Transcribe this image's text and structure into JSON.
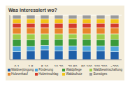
{
  "chart_data": {
    "type": "bar",
    "title": "Was interessiert wo?",
    "categories": [
      "0-1",
      "1-5",
      "5-10",
      "10-20",
      "20-50",
      "50-100",
      "100-200",
      ">200"
    ],
    "series": [
      {
        "name": "Waldverjüngung",
        "color": "#1f5fa8",
        "values": [
          18,
          20,
          22,
          20,
          21,
          19,
          20,
          18
        ]
      },
      {
        "name": "Förderung",
        "color": "#4fa6dc",
        "values": [
          12,
          10,
          10,
          11,
          10,
          12,
          11,
          12
        ]
      },
      {
        "name": "Waldpflege",
        "color": "#3a9a3a",
        "values": [
          16,
          15,
          14,
          15,
          16,
          15,
          14,
          16
        ]
      },
      {
        "name": "Waldbewirtschaftung",
        "color": "#9ccc4a",
        "values": [
          12,
          13,
          12,
          12,
          11,
          12,
          13,
          12
        ]
      },
      {
        "name": "Holzverkauf",
        "color": "#e8862a",
        "values": [
          14,
          14,
          14,
          13,
          13,
          14,
          14,
          14
        ]
      },
      {
        "name": "Holzeinschlag",
        "color": "#d33a2c",
        "values": [
          10,
          10,
          10,
          11,
          11,
          10,
          10,
          10
        ]
      },
      {
        "name": "Waldschutz",
        "color": "#f2c318",
        "values": [
          10,
          10,
          10,
          10,
          10,
          10,
          10,
          10
        ]
      },
      {
        "name": "Sonstiges",
        "color": "#9a9a9a",
        "values": [
          8,
          8,
          8,
          8,
          8,
          8,
          8,
          8
        ]
      }
    ],
    "ylim": [
      0,
      100
    ],
    "yticks": [
      0,
      20,
      40,
      60,
      80,
      100
    ],
    "grid": true,
    "stacked": true,
    "tick_labels": "x"
  }
}
